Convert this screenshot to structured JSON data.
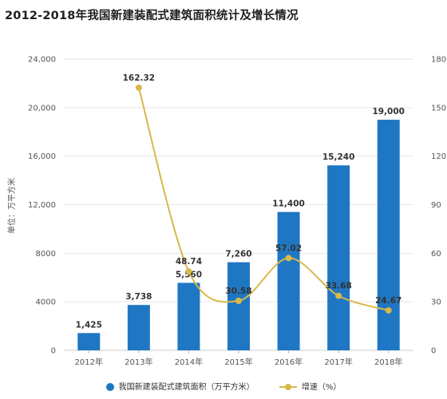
{
  "title": "2012-2018年我国新建装配式建筑面积统计及增长情况",
  "chart_data": {
    "type": "bar",
    "categories": [
      "2012年",
      "2013年",
      "2014年",
      "2015年",
      "2016年",
      "2017年",
      "2018年"
    ],
    "series": [
      {
        "name": "我国新建装配式建筑面积（万平方米）",
        "type": "bar",
        "axis": "left",
        "color": "#1f77c4",
        "values": [
          1425,
          3738,
          5560,
          7260,
          11400,
          15240,
          19000
        ],
        "labels": [
          "1,425",
          "3,738",
          "5,560",
          "7,260",
          "11,400",
          "15,240",
          "19,000"
        ]
      },
      {
        "name": "增速（%）",
        "type": "line",
        "axis": "right",
        "color": "#d8b84a",
        "values": [
          null,
          162.32,
          48.74,
          30.58,
          57.02,
          33.68,
          24.67
        ],
        "labels": [
          "",
          "162.32",
          "48.74",
          "30.58",
          "57.02",
          "33.68",
          "24.67"
        ]
      }
    ],
    "ylabel": "单位：万平方米",
    "ylim": [
      0,
      24000
    ],
    "yticks": [
      "0",
      "4000",
      "8000",
      "12,000",
      "16,000",
      "20,000",
      "24,000"
    ],
    "y2lim": [
      0,
      180
    ],
    "y2ticks": [
      "0",
      "30",
      "60",
      "90",
      "120",
      "150",
      "180"
    ],
    "grid": true,
    "legend_position": "bottom"
  }
}
